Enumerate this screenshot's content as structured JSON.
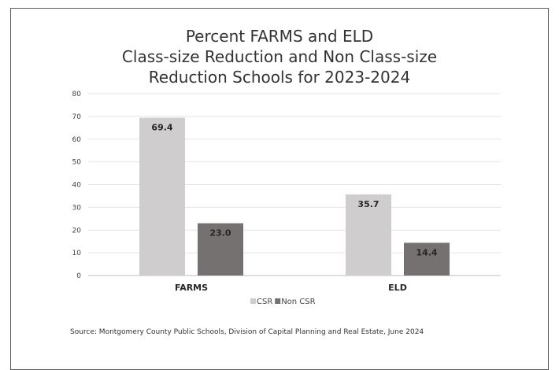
{
  "chart_data": {
    "type": "bar",
    "title_lines": [
      "Percent FARMS and ELD",
      "Class-size Reduction and Non Class-size",
      "Reduction Schools for 2023-2024"
    ],
    "categories": [
      "FARMS",
      "ELD"
    ],
    "series": [
      {
        "name": "CSR",
        "values": [
          69.4,
          35.7
        ],
        "labels": [
          "69.4",
          "35.7"
        ],
        "color": "#cfcdcd"
      },
      {
        "name": "Non CSR",
        "values": [
          23.0,
          14.4
        ],
        "labels": [
          "23.0",
          "14.4"
        ],
        "color": "#757170"
      }
    ],
    "ylim": [
      0,
      80
    ],
    "yticks": [
      "0",
      "10",
      "20",
      "30",
      "40",
      "50",
      "60",
      "70",
      "80"
    ],
    "grid": true,
    "legend_position": "bottom",
    "xlabel": "",
    "ylabel": ""
  },
  "source_note": "Source: Montgomery County Public Schools, Division of Capital Planning and Real Estate, June 2024"
}
